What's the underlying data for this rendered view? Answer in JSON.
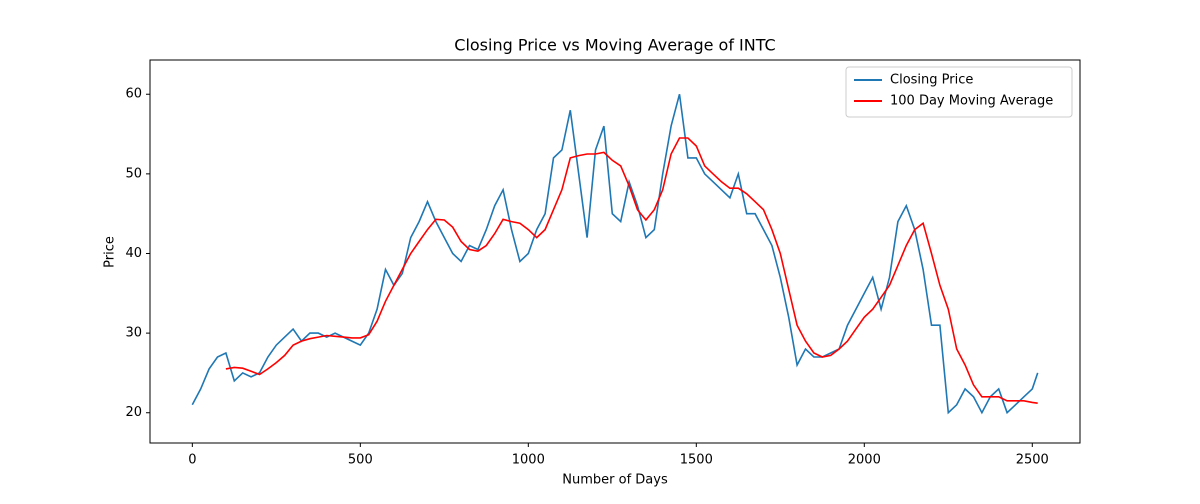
{
  "chart_data": {
    "type": "line",
    "title": "Closing Price vs Moving Average of INTC",
    "xlabel": "Number of Days",
    "ylabel": "Price",
    "x": [
      0,
      25,
      50,
      75,
      100,
      125,
      150,
      175,
      200,
      225,
      250,
      275,
      300,
      325,
      350,
      375,
      400,
      425,
      450,
      475,
      500,
      525,
      550,
      575,
      600,
      625,
      650,
      675,
      700,
      725,
      750,
      775,
      800,
      825,
      850,
      875,
      900,
      925,
      950,
      975,
      1000,
      1025,
      1050,
      1075,
      1100,
      1125,
      1150,
      1175,
      1200,
      1225,
      1250,
      1275,
      1300,
      1325,
      1350,
      1375,
      1400,
      1425,
      1450,
      1475,
      1500,
      1525,
      1550,
      1575,
      1600,
      1625,
      1650,
      1675,
      1700,
      1725,
      1750,
      1775,
      1800,
      1825,
      1850,
      1875,
      1900,
      1925,
      1950,
      1975,
      2000,
      2025,
      2050,
      2075,
      2100,
      2125,
      2150,
      2175,
      2200,
      2225,
      2250,
      2275,
      2300,
      2325,
      2350,
      2375,
      2400,
      2425,
      2450,
      2475,
      2500,
      2516
    ],
    "series": [
      {
        "name": "Closing Price",
        "color": "#1f77b4",
        "values": [
          21,
          23,
          25.5,
          27,
          27.5,
          24,
          25,
          24.5,
          25,
          27,
          28.5,
          29.5,
          30.5,
          29,
          30,
          30,
          29.5,
          30,
          29.5,
          29,
          28.5,
          30,
          33,
          38,
          36,
          37.5,
          42,
          44,
          46.5,
          44,
          42,
          40,
          39,
          41,
          40.5,
          43,
          46,
          48,
          43,
          39,
          40,
          43,
          45,
          52,
          53,
          58,
          50,
          42,
          53,
          56,
          45,
          44,
          49,
          46,
          42,
          43,
          50,
          56,
          60,
          52,
          52,
          50,
          49,
          48,
          47,
          50,
          45,
          45,
          43,
          41,
          37,
          32,
          26,
          28,
          27,
          27,
          27.5,
          28,
          31,
          33,
          35,
          37,
          33,
          37,
          44,
          46,
          43,
          38,
          31,
          31,
          20,
          21,
          23,
          22,
          20,
          22,
          23,
          20,
          21,
          22,
          23,
          25
        ]
      },
      {
        "name": "100 Day Moving Average",
        "color": "#ff0000",
        "values": [
          null,
          null,
          null,
          null,
          25.5,
          25.7,
          25.6,
          25.2,
          24.8,
          25.5,
          26.3,
          27.2,
          28.5,
          29,
          29.3,
          29.5,
          29.7,
          29.6,
          29.5,
          29.4,
          29.4,
          29.8,
          31.5,
          34,
          36,
          38,
          40,
          41.5,
          43,
          44.3,
          44.2,
          43.3,
          41.5,
          40.5,
          40.3,
          41,
          42.5,
          44.3,
          44,
          43.8,
          43,
          42,
          43,
          45.5,
          48,
          52,
          52.3,
          52.5,
          52.5,
          52.7,
          51.7,
          51,
          48.5,
          45.5,
          44.2,
          45.5,
          48,
          52.5,
          54.5,
          54.5,
          53.5,
          51,
          50,
          49,
          48.2,
          48.2,
          47.5,
          46.5,
          45.5,
          43,
          40,
          35.5,
          31,
          29,
          27.5,
          27,
          27.2,
          28,
          29,
          30.5,
          32,
          33,
          34.5,
          36,
          38.5,
          41,
          43,
          43.8,
          40,
          36,
          33,
          28,
          26,
          23.5,
          22,
          22,
          22,
          21.5,
          21.5,
          21.5,
          21.3,
          21.2
        ]
      }
    ],
    "xlim": [
      -126,
      2642
    ],
    "ylim": [
      16.2,
      64.3
    ],
    "xticks": [
      0,
      500,
      1000,
      1500,
      2000,
      2500
    ],
    "yticks": [
      20,
      30,
      40,
      50,
      60
    ],
    "legend": "upper right",
    "grid": false
  }
}
